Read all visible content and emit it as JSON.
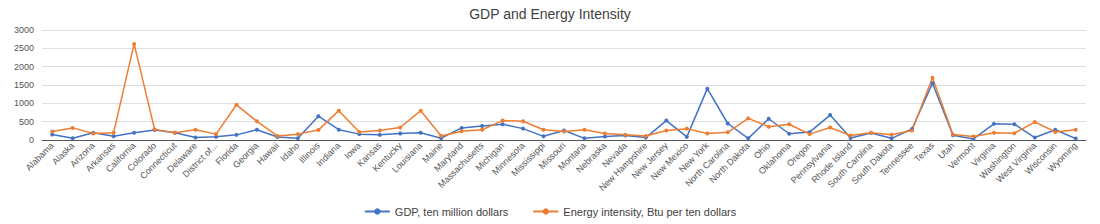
{
  "chart_data": {
    "type": "line",
    "title": "GDP and Energy Intensity",
    "categories": [
      "Alabama",
      "Alaska",
      "Arizona",
      "Arkansas",
      "California",
      "Colorado",
      "Connecticut",
      "Delaware",
      "District of...",
      "Florida",
      "Georgia",
      "Hawaii",
      "Idaho",
      "Illinois",
      "Indiana",
      "Iowa",
      "Kansas",
      "Kentucky",
      "Louisiana",
      "Maine",
      "Maryland",
      "Massachusetts",
      "Michigan",
      "Minnesota",
      "Mississippi",
      "Missouri",
      "Montana",
      "Nebraska",
      "Nevada",
      "New Hampshire",
      "New Jersey",
      "New Mexico",
      "New York",
      "North Carolina",
      "North Dakota",
      "Ohio",
      "Oklahoma",
      "Oregon",
      "Pennsylvania",
      "Rhode Island",
      "South Carolina",
      "South Dakota",
      "Tennessee",
      "Texas",
      "Utah",
      "Vermont",
      "Virginia",
      "Washington",
      "West Virginia",
      "Wisconsin",
      "Wyoming"
    ],
    "series": [
      {
        "name": "GDP, ten million dollars",
        "color": "#4472c4",
        "marker": "circle",
        "values": [
          150,
          50,
          200,
          100,
          200,
          270,
          200,
          70,
          90,
          140,
          280,
          80,
          50,
          650,
          280,
          160,
          140,
          180,
          200,
          50,
          330,
          380,
          430,
          310,
          100,
          260,
          45,
          95,
          120,
          65,
          530,
          85,
          1400,
          450,
          45,
          580,
          170,
          215,
          680,
          55,
          190,
          45,
          300,
          1550,
          130,
          28,
          440,
          430,
          68,
          280,
          38
        ]
      },
      {
        "name": "Energy intensity, Btu per ten dollars",
        "color": "#ed7d31",
        "marker": "circle",
        "values": [
          230,
          330,
          180,
          200,
          2620,
          290,
          200,
          280,
          160,
          960,
          510,
          110,
          160,
          270,
          800,
          220,
          260,
          340,
          800,
          110,
          240,
          280,
          530,
          510,
          280,
          230,
          280,
          180,
          140,
          110,
          260,
          310,
          180,
          210,
          590,
          360,
          430,
          160,
          340,
          120,
          200,
          145,
          260,
          1700,
          150,
          95,
          200,
          185,
          490,
          220,
          280
        ]
      }
    ],
    "ylim": [
      0,
      3000
    ],
    "yticks": [
      0,
      500,
      1000,
      1500,
      2000,
      2500,
      3000
    ],
    "grid": true,
    "legend": "bottom"
  }
}
